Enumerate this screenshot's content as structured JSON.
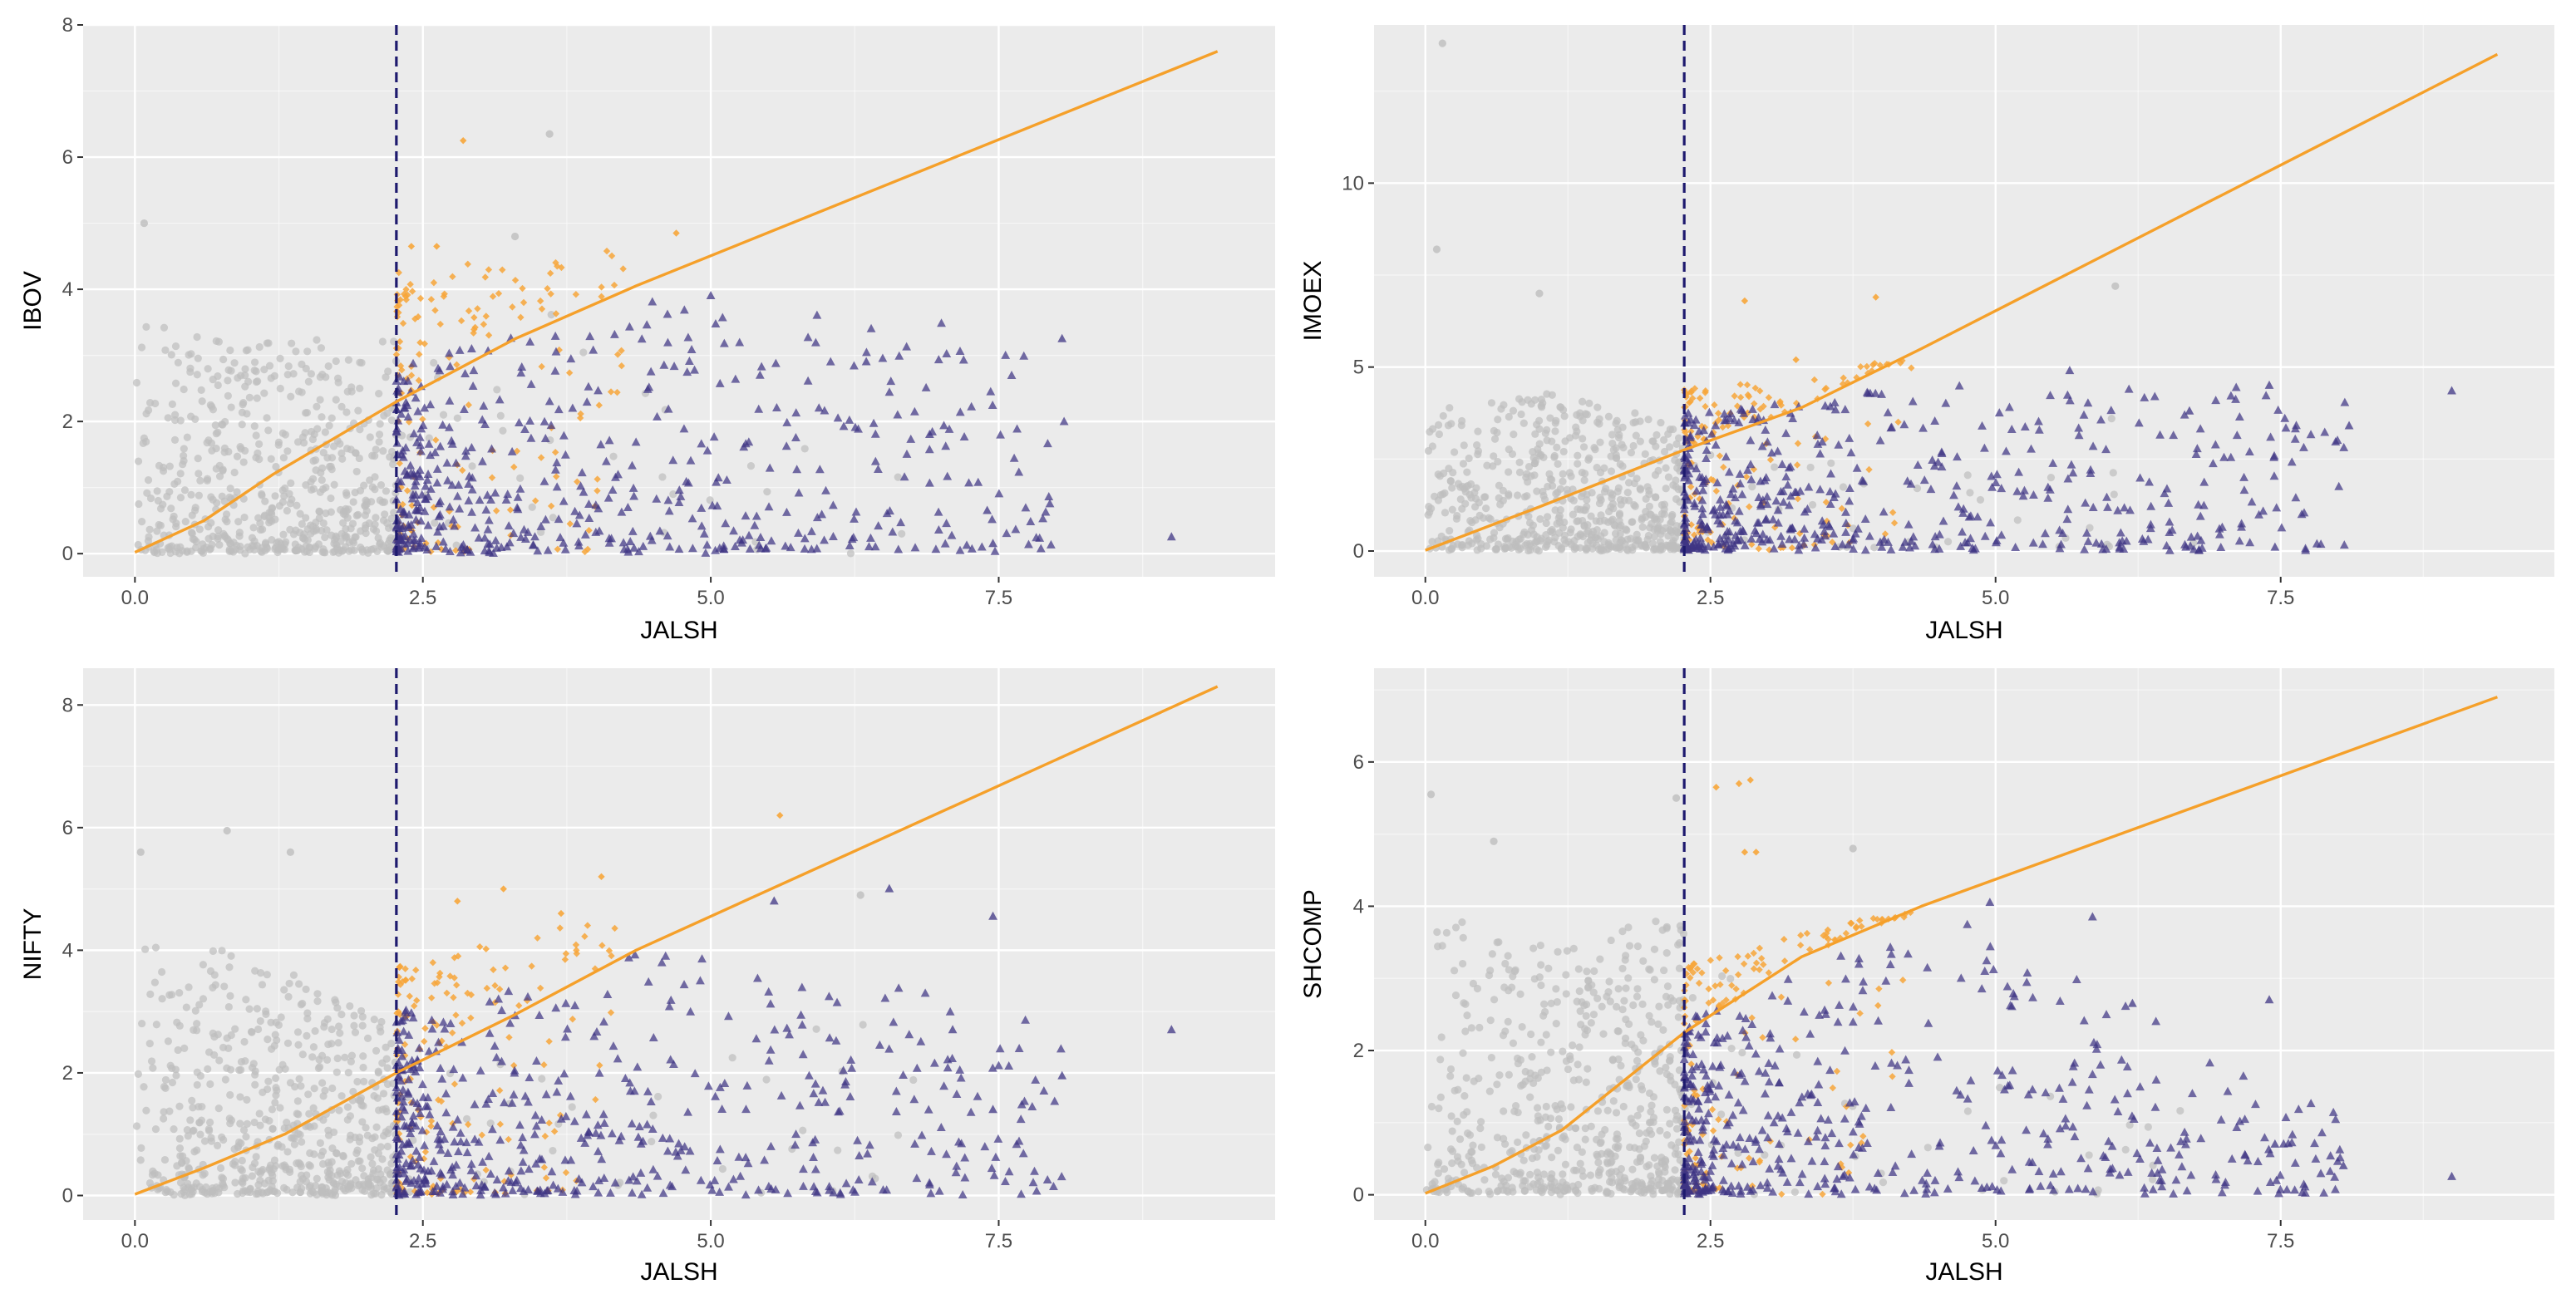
{
  "colors": {
    "panel_bg": "#EBEBEB",
    "grid_major": "#FFFFFF",
    "below_threshold_points": "#BEBEBE",
    "orange_points": "#F7A63A",
    "purple_triangles": "#3F3584",
    "fit_line": "#F5A02A",
    "threshold_line": "#1E1A6E"
  },
  "chart_data": [
    {
      "type": "scatter",
      "xlabel": "JALSH",
      "ylabel": "IBOV",
      "xlim": [
        -0.45,
        9.9
      ],
      "ylim": [
        -0.35,
        8.0
      ],
      "xticks": [
        0,
        2.5,
        5,
        7.5
      ],
      "xtick_labels": [
        "0.0",
        "2.5",
        "5.0",
        "7.5"
      ],
      "yticks": [
        0,
        2,
        4,
        6,
        8
      ],
      "ytick_labels": [
        "0",
        "2",
        "4",
        "6",
        "8"
      ],
      "threshold_x": 2.27,
      "fit_line": [
        [
          0,
          0.02
        ],
        [
          0.6,
          0.5
        ],
        [
          1.2,
          1.2
        ],
        [
          2.27,
          2.3
        ],
        [
          3.3,
          3.25
        ],
        [
          4.35,
          4.05
        ],
        [
          9.4,
          7.6
        ]
      ],
      "grey_max": [
        [
          0,
          5.0
        ],
        [
          1.0,
          4.4
        ],
        [
          2.27,
          4.6
        ],
        [
          3.6,
          6.35
        ],
        [
          4.5,
          4.0
        ],
        [
          9.5,
          1.0
        ]
      ],
      "orange_max": [
        [
          2.27,
          4.8
        ],
        [
          4.5,
          4.8
        ],
        [
          9.5,
          1.0
        ]
      ],
      "purple_max": [
        [
          2.27,
          2.8
        ],
        [
          4.5,
          3.9
        ],
        [
          8.1,
          3.3
        ],
        [
          9.5,
          0.5
        ]
      ],
      "outliers": {
        "grey": [
          [
            3.6,
            6.35
          ],
          [
            0.08,
            5.0
          ],
          [
            3.3,
            4.8
          ]
        ],
        "orange": [
          [
            2.85,
            6.25
          ],
          [
            4.7,
            4.85
          ],
          [
            2.4,
            4.65
          ],
          [
            2.62,
            4.65
          ]
        ],
        "purple": [
          [
            8.05,
            3.25
          ],
          [
            9.0,
            0.25
          ],
          [
            7.4,
            0.65
          ],
          [
            7.45,
            0.15
          ],
          [
            6.35,
            2.9
          ],
          [
            5.0,
            3.9
          ],
          [
            6.9,
            1.8
          ]
        ]
      },
      "counts": {
        "grey": 600,
        "orange": 160,
        "purple": 520
      }
    },
    {
      "type": "scatter",
      "xlabel": "JALSH",
      "ylabel": "IMOEX",
      "xlim": [
        -0.45,
        9.9
      ],
      "ylim": [
        -0.7,
        14.3
      ],
      "xticks": [
        0,
        2.5,
        5,
        7.5
      ],
      "xtick_labels": [
        "0.0",
        "2.5",
        "5.0",
        "7.5"
      ],
      "yticks": [
        0,
        5,
        10
      ],
      "ytick_labels": [
        "0",
        "5",
        "10"
      ],
      "threshold_x": 2.27,
      "fit_line": [
        [
          0,
          0.02
        ],
        [
          1.0,
          1.2
        ],
        [
          2.27,
          2.75
        ],
        [
          3.3,
          3.9
        ],
        [
          4.35,
          5.5
        ],
        [
          9.4,
          13.5
        ]
      ],
      "grey_max": [
        [
          0,
          5.5
        ],
        [
          1.0,
          6.0
        ],
        [
          2.27,
          4.8
        ],
        [
          4.5,
          3.5
        ],
        [
          6.1,
          7.2
        ],
        [
          9.5,
          1.0
        ]
      ],
      "orange_max": [
        [
          2.27,
          4.8
        ],
        [
          4.0,
          5.2
        ],
        [
          6.0,
          2.0
        ],
        [
          9.5,
          0.5
        ]
      ],
      "purple_max": [
        [
          2.27,
          3.8
        ],
        [
          4.5,
          4.5
        ],
        [
          9.0,
          4.4
        ],
        [
          9.5,
          0.5
        ]
      ],
      "outliers": {
        "grey": [
          [
            0.15,
            13.8
          ],
          [
            0.1,
            8.2
          ],
          [
            1.0,
            7.0
          ],
          [
            6.05,
            7.2
          ]
        ],
        "orange": [
          [
            2.8,
            6.8
          ],
          [
            3.95,
            6.9
          ],
          [
            3.25,
            5.2
          ]
        ],
        "purple": [
          [
            9.0,
            4.35
          ],
          [
            8.1,
            3.4
          ],
          [
            7.4,
            4.5
          ],
          [
            7.45,
            0.1
          ],
          [
            5.65,
            4.9
          ],
          [
            6.7,
            3.8
          ]
        ]
      },
      "counts": {
        "grey": 600,
        "orange": 160,
        "purple": 520
      }
    },
    {
      "type": "scatter",
      "xlabel": "JALSH",
      "ylabel": "NIFTY",
      "xlim": [
        -0.45,
        9.9
      ],
      "ylim": [
        -0.4,
        8.6
      ],
      "xticks": [
        0,
        2.5,
        5,
        7.5
      ],
      "xtick_labels": [
        "0.0",
        "2.5",
        "5.0",
        "7.5"
      ],
      "yticks": [
        0,
        2,
        4,
        6,
        8
      ],
      "ytick_labels": [
        "0",
        "2",
        "4",
        "6",
        "8"
      ],
      "threshold_x": 2.27,
      "fit_line": [
        [
          0,
          0.02
        ],
        [
          0.6,
          0.45
        ],
        [
          1.3,
          1.0
        ],
        [
          2.27,
          2.0
        ],
        [
          3.3,
          2.95
        ],
        [
          4.35,
          4.0
        ],
        [
          9.4,
          8.3
        ]
      ],
      "grey_max": [
        [
          0,
          5.7
        ],
        [
          1.0,
          5.5
        ],
        [
          2.27,
          3.8
        ],
        [
          4.5,
          3.5
        ],
        [
          6.5,
          5.0
        ],
        [
          9.5,
          1.0
        ]
      ],
      "orange_max": [
        [
          2.27,
          4.2
        ],
        [
          4.3,
          4.8
        ],
        [
          5.6,
          6.2
        ],
        [
          9.5,
          1.0
        ]
      ],
      "purple_max": [
        [
          2.27,
          3.0
        ],
        [
          4.5,
          4.0
        ],
        [
          9.0,
          2.7
        ],
        [
          9.5,
          0.5
        ]
      ],
      "outliers": {
        "grey": [
          [
            0.05,
            5.6
          ],
          [
            0.8,
            5.95
          ],
          [
            1.35,
            5.6
          ],
          [
            6.3,
            4.9
          ]
        ],
        "orange": [
          [
            5.6,
            6.2
          ],
          [
            3.2,
            5.0
          ],
          [
            2.8,
            4.8
          ],
          [
            3.7,
            4.6
          ],
          [
            4.05,
            5.2
          ]
        ],
        "purple": [
          [
            9.0,
            2.7
          ],
          [
            8.05,
            1.95
          ],
          [
            7.45,
            4.55
          ],
          [
            7.45,
            1.4
          ],
          [
            6.55,
            5.0
          ],
          [
            5.55,
            4.8
          ],
          [
            7.1,
            2.7
          ]
        ]
      },
      "counts": {
        "grey": 600,
        "orange": 160,
        "purple": 520
      }
    },
    {
      "type": "scatter",
      "xlabel": "JALSH",
      "ylabel": "SHCOMP",
      "xlim": [
        -0.45,
        9.9
      ],
      "ylim": [
        -0.35,
        7.3
      ],
      "xticks": [
        0,
        2.5,
        5,
        7.5
      ],
      "xtick_labels": [
        "0.0",
        "2.5",
        "5.0",
        "7.5"
      ],
      "yticks": [
        0,
        2,
        4,
        6
      ],
      "ytick_labels": [
        "0",
        "2",
        "4",
        "6"
      ],
      "threshold_x": 2.27,
      "fit_line": [
        [
          0,
          0.02
        ],
        [
          0.6,
          0.4
        ],
        [
          1.2,
          0.9
        ],
        [
          2.27,
          2.25
        ],
        [
          3.3,
          3.3
        ],
        [
          4.35,
          4.0
        ],
        [
          9.4,
          6.9
        ]
      ],
      "grey_max": [
        [
          0,
          5.5
        ],
        [
          1.0,
          4.8
        ],
        [
          2.27,
          5.5
        ],
        [
          4.5,
          3.0
        ],
        [
          6.5,
          2.0
        ],
        [
          9.5,
          0.5
        ]
      ],
      "orange_max": [
        [
          2.27,
          3.4
        ],
        [
          4.0,
          3.9
        ],
        [
          9.5,
          0.5
        ]
      ],
      "purple_max": [
        [
          2.27,
          2.4
        ],
        [
          4.5,
          4.0
        ],
        [
          9.0,
          0.3
        ],
        [
          9.5,
          0.3
        ]
      ],
      "outliers": {
        "grey": [
          [
            0.05,
            5.55
          ],
          [
            2.2,
            5.5
          ],
          [
            0.6,
            4.9
          ],
          [
            3.75,
            4.8
          ]
        ],
        "orange": [
          [
            2.75,
            5.7
          ],
          [
            2.85,
            5.75
          ],
          [
            2.55,
            5.65
          ],
          [
            2.8,
            4.75
          ],
          [
            2.9,
            4.75
          ]
        ],
        "purple": [
          [
            9.0,
            0.25
          ],
          [
            8.05,
            0.4
          ],
          [
            7.4,
            2.7
          ],
          [
            7.45,
            0.7
          ],
          [
            5.85,
            3.85
          ],
          [
            4.95,
            4.05
          ],
          [
            6.2,
            2.65
          ]
        ]
      },
      "counts": {
        "grey": 600,
        "orange": 160,
        "purple": 520
      }
    }
  ]
}
